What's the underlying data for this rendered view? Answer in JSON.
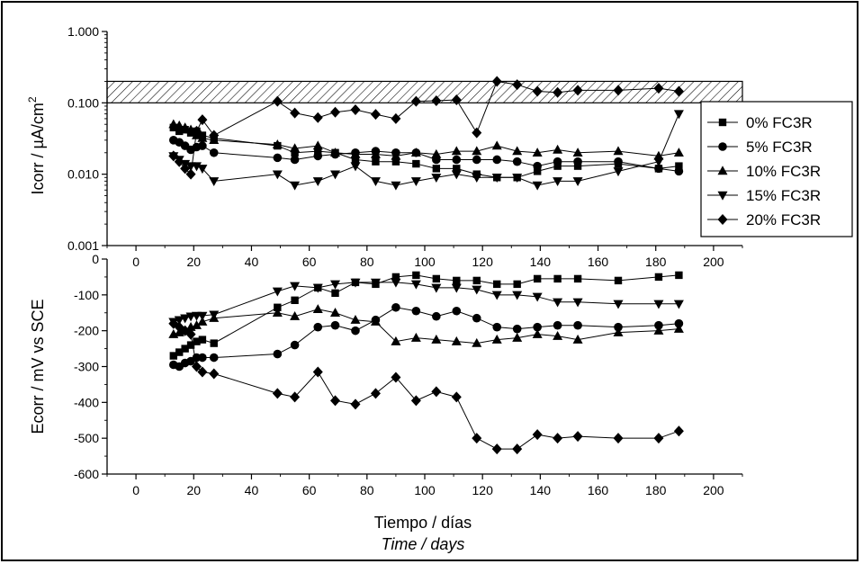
{
  "chart_data": [
    {
      "type": "line",
      "panel": "top",
      "ylabel_base": "Icorr / µA/cm",
      "ylabel_sup": "2",
      "yscale": "log",
      "ylim": [
        0.001,
        1.0
      ],
      "yticks": [
        1.0,
        0.1,
        0.01,
        0.001
      ],
      "ytick_labels": [
        "1.000",
        "0.100",
        "0.010",
        "0.001"
      ],
      "xlim": [
        -10,
        210
      ],
      "xticks": [
        0,
        20,
        40,
        60,
        80,
        100,
        120,
        140,
        160,
        180,
        200
      ],
      "xtick_labels": [
        "0",
        "20",
        "40",
        "60",
        "80",
        "100",
        "120",
        "140",
        "160",
        "180",
        "200"
      ],
      "band": [
        0.1,
        0.2
      ],
      "legend": "right",
      "series": [
        {
          "name": "0% FC3R",
          "marker": "square",
          "x": [
            13,
            15,
            17,
            19,
            21,
            23,
            27,
            49,
            55,
            63,
            69,
            76,
            83,
            90,
            97,
            104,
            111,
            118,
            125,
            132,
            139,
            146,
            153,
            167,
            181,
            188
          ],
          "y": [
            0.045,
            0.04,
            0.042,
            0.038,
            0.04,
            0.035,
            0.032,
            0.025,
            0.02,
            0.021,
            0.02,
            0.016,
            0.015,
            0.015,
            0.014,
            0.012,
            0.012,
            0.01,
            0.009,
            0.009,
            0.011,
            0.013,
            0.013,
            0.014,
            0.012,
            0.013
          ]
        },
        {
          "name": "5% FC3R",
          "marker": "circle",
          "x": [
            13,
            15,
            17,
            19,
            21,
            23,
            27,
            49,
            55,
            63,
            69,
            76,
            83,
            90,
            97,
            104,
            111,
            118,
            125,
            132,
            139,
            146,
            153,
            167,
            181,
            188
          ],
          "y": [
            0.03,
            0.028,
            0.025,
            0.022,
            0.024,
            0.025,
            0.02,
            0.017,
            0.016,
            0.018,
            0.019,
            0.02,
            0.021,
            0.02,
            0.02,
            0.016,
            0.016,
            0.016,
            0.016,
            0.015,
            0.013,
            0.015,
            0.015,
            0.015,
            0.012,
            0.011
          ]
        },
        {
          "name": "10% FC3R",
          "marker": "triangle-up",
          "x": [
            13,
            15,
            17,
            19,
            21,
            23,
            27,
            49,
            55,
            63,
            69,
            76,
            83,
            90,
            97,
            104,
            111,
            118,
            125,
            132,
            139,
            146,
            153,
            167,
            181,
            188
          ],
          "y": [
            0.05,
            0.048,
            0.045,
            0.042,
            0.035,
            0.032,
            0.03,
            0.026,
            0.023,
            0.025,
            0.02,
            0.019,
            0.019,
            0.018,
            0.02,
            0.019,
            0.021,
            0.021,
            0.025,
            0.021,
            0.02,
            0.022,
            0.02,
            0.021,
            0.018,
            0.02
          ]
        },
        {
          "name": "15% FC3R",
          "marker": "triangle-down",
          "x": [
            13,
            15,
            17,
            19,
            21,
            23,
            27,
            49,
            55,
            63,
            69,
            76,
            83,
            90,
            97,
            104,
            111,
            118,
            125,
            132,
            139,
            146,
            153,
            167,
            181,
            188
          ],
          "y": [
            0.018,
            0.016,
            0.014,
            0.013,
            0.013,
            0.012,
            0.008,
            0.01,
            0.007,
            0.008,
            0.01,
            0.013,
            0.008,
            0.007,
            0.008,
            0.009,
            0.01,
            0.009,
            0.009,
            0.009,
            0.007,
            0.008,
            0.008,
            0.011,
            0.015,
            0.07
          ]
        },
        {
          "name": "20% FC3R",
          "marker": "diamond",
          "x": [
            13,
            15,
            17,
            19,
            21,
            23,
            27,
            49,
            55,
            63,
            69,
            76,
            83,
            90,
            97,
            104,
            111,
            118,
            125,
            132,
            139,
            146,
            153,
            167,
            181,
            188
          ],
          "y": [
            0.018,
            0.015,
            0.012,
            0.01,
            0.04,
            0.058,
            0.035,
            0.105,
            0.072,
            0.062,
            0.074,
            0.08,
            0.069,
            0.06,
            0.105,
            0.107,
            0.11,
            0.038,
            0.2,
            0.18,
            0.145,
            0.14,
            0.15,
            0.15,
            0.16,
            0.145
          ]
        }
      ]
    },
    {
      "type": "line",
      "panel": "bottom",
      "ylabel": "Ecorr / mV vs SCE",
      "ylim": [
        -600,
        0
      ],
      "yticks": [
        0,
        -100,
        -200,
        -300,
        -400,
        -500,
        -600
      ],
      "ytick_labels": [
        "0",
        "-100",
        "-200",
        "-300",
        "-400",
        "-500",
        "-600"
      ],
      "xlim": [
        -10,
        210
      ],
      "xticks": [
        0,
        20,
        40,
        60,
        80,
        100,
        120,
        140,
        160,
        180,
        200
      ],
      "xtick_labels": [
        "0",
        "20",
        "40",
        "60",
        "80",
        "100",
        "120",
        "140",
        "160",
        "180",
        "200"
      ],
      "xlabel": "Tiempo / días",
      "xlabel2": "Time / days",
      "series": [
        {
          "name": "0% FC3R",
          "marker": "square",
          "x": [
            13,
            15,
            17,
            19,
            21,
            23,
            27,
            49,
            55,
            63,
            69,
            76,
            83,
            90,
            97,
            104,
            111,
            118,
            125,
            132,
            139,
            146,
            153,
            167,
            181,
            188
          ],
          "y": [
            -270,
            -260,
            -250,
            -240,
            -230,
            -225,
            -235,
            -135,
            -115,
            -80,
            -95,
            -65,
            -70,
            -50,
            -45,
            -55,
            -60,
            -60,
            -70,
            -70,
            -55,
            -55,
            -55,
            -60,
            -50,
            -45
          ]
        },
        {
          "name": "5% FC3R",
          "marker": "circle",
          "x": [
            13,
            15,
            17,
            19,
            21,
            23,
            27,
            49,
            55,
            63,
            69,
            76,
            83,
            90,
            97,
            104,
            111,
            118,
            125,
            132,
            139,
            146,
            153,
            167,
            181,
            188
          ],
          "y": [
            -295,
            -300,
            -290,
            -285,
            -275,
            -275,
            -275,
            -265,
            -240,
            -190,
            -185,
            -200,
            -170,
            -135,
            -145,
            -160,
            -145,
            -165,
            -190,
            -195,
            -190,
            -185,
            -185,
            -190,
            -185,
            -180
          ]
        },
        {
          "name": "10% FC3R",
          "marker": "triangle-up",
          "x": [
            13,
            15,
            17,
            19,
            21,
            23,
            27,
            49,
            55,
            63,
            69,
            76,
            83,
            90,
            97,
            104,
            111,
            118,
            125,
            132,
            139,
            146,
            153,
            167,
            181,
            188
          ],
          "y": [
            -210,
            -205,
            -200,
            -190,
            -185,
            -175,
            -165,
            -150,
            -160,
            -140,
            -150,
            -170,
            -175,
            -230,
            -220,
            -225,
            -230,
            -235,
            -225,
            -220,
            -210,
            -215,
            -225,
            -205,
            -200,
            -195
          ]
        },
        {
          "name": "15% FC3R",
          "marker": "triangle-down",
          "x": [
            13,
            15,
            17,
            19,
            21,
            23,
            27,
            49,
            55,
            63,
            69,
            76,
            83,
            90,
            97,
            104,
            111,
            118,
            125,
            132,
            139,
            146,
            153,
            167,
            181,
            188
          ],
          "y": [
            -175,
            -170,
            -165,
            -160,
            -158,
            -158,
            -155,
            -90,
            -75,
            -80,
            -70,
            -65,
            -65,
            -65,
            -70,
            -80,
            -80,
            -85,
            -100,
            -100,
            -105,
            -120,
            -120,
            -125,
            -125,
            -125
          ]
        },
        {
          "name": "20% FC3R",
          "marker": "diamond",
          "x": [
            13,
            15,
            17,
            19,
            21,
            23,
            27,
            49,
            55,
            63,
            69,
            76,
            83,
            90,
            97,
            104,
            111,
            118,
            125,
            132,
            139,
            146,
            153,
            167,
            181,
            188
          ],
          "y": [
            -180,
            -190,
            -200,
            -210,
            -300,
            -315,
            -320,
            -375,
            -385,
            -315,
            -395,
            -405,
            -375,
            -330,
            -395,
            -370,
            -385,
            -500,
            -530,
            -530,
            -490,
            -500,
            -495,
            -500,
            -500,
            -480
          ]
        }
      ]
    }
  ]
}
